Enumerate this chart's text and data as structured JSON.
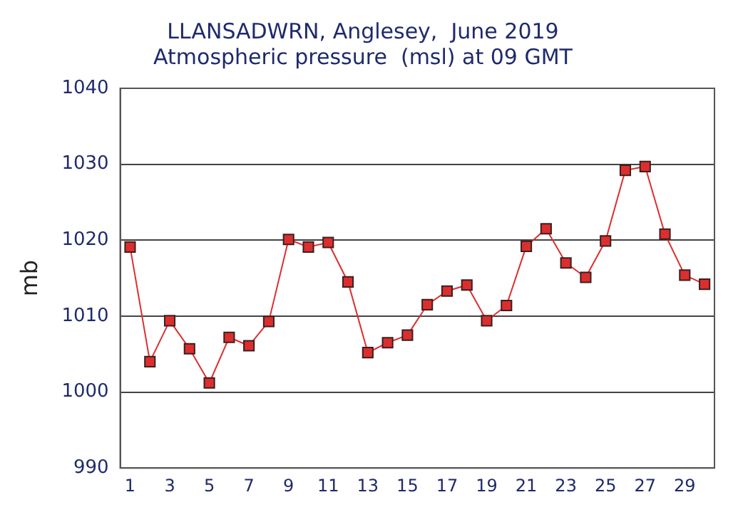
{
  "chart_data": {
    "type": "line",
    "title": "LLANSADWRN, Anglesey,  June 2019",
    "subtitle": "Atmospheric pressure  (msl) at 09 GMT",
    "ylabel": "mb",
    "x": [
      1,
      2,
      3,
      4,
      5,
      6,
      7,
      8,
      9,
      10,
      11,
      12,
      13,
      14,
      15,
      16,
      17,
      18,
      19,
      20,
      21,
      22,
      23,
      24,
      25,
      26,
      27,
      28,
      29,
      30
    ],
    "series": [
      {
        "color": "#dd2e2e",
        "values": [
          1019.1,
          1004.0,
          1009.4,
          1005.7,
          1001.2,
          1007.2,
          1006.1,
          1009.3,
          1020.1,
          1019.1,
          1019.7,
          1014.5,
          1005.2,
          1006.5,
          1007.5,
          1011.5,
          1013.3,
          1014.1,
          1009.4,
          1011.4,
          1019.2,
          1021.5,
          1017.0,
          1015.1,
          1019.9,
          1029.2,
          1029.7,
          1020.8,
          1015.4,
          1014.2
        ]
      }
    ],
    "xlim": [
      0.5,
      30.5
    ],
    "xticks": [
      1,
      3,
      5,
      7,
      9,
      11,
      13,
      15,
      17,
      19,
      21,
      23,
      25,
      27,
      29
    ],
    "ylim": [
      990,
      1040
    ],
    "yticks": [
      990,
      1000,
      1010,
      1020,
      1030,
      1040
    ],
    "grid": "y",
    "marker": "square",
    "line_style": "solid",
    "legend": false
  }
}
